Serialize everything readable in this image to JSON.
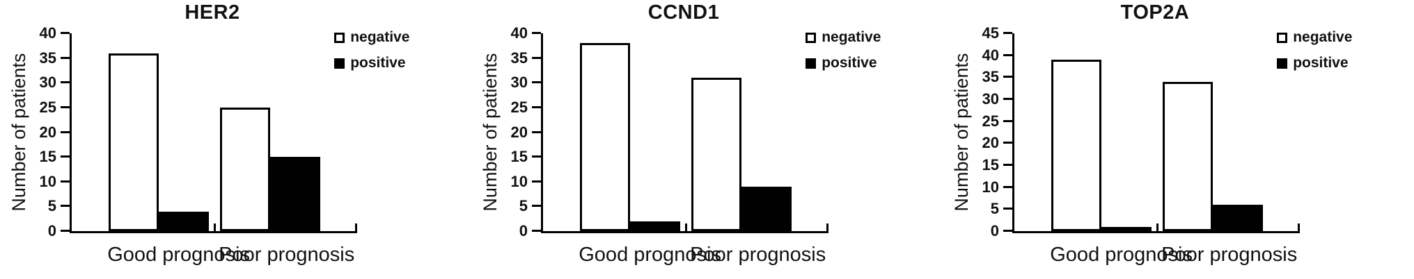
{
  "figure": {
    "background": "#ffffff",
    "ink_color": "#000000"
  },
  "chart_data": [
    {
      "type": "bar",
      "title": "HER2",
      "ylabel": "Number of patients",
      "categories": [
        "Good prognosis",
        "Poor prognosis"
      ],
      "series": [
        {
          "name": "negative",
          "values": [
            36,
            25
          ],
          "fill": "#ffffff"
        },
        {
          "name": "positive",
          "values": [
            4,
            15
          ],
          "fill": "#000000"
        }
      ],
      "ylim": [
        0,
        40
      ],
      "ytick_step": 5,
      "yticks": [
        0,
        5,
        10,
        15,
        20,
        25,
        30,
        35,
        40
      ],
      "legend_position": "top-right",
      "grid": false
    },
    {
      "type": "bar",
      "title": "CCND1",
      "ylabel": "Number of patients",
      "categories": [
        "Good prognosis",
        "Poor prognosis"
      ],
      "series": [
        {
          "name": "negative",
          "values": [
            38,
            31
          ],
          "fill": "#ffffff"
        },
        {
          "name": "positive",
          "values": [
            2,
            9
          ],
          "fill": "#000000"
        }
      ],
      "ylim": [
        0,
        40
      ],
      "ytick_step": 5,
      "yticks": [
        0,
        5,
        10,
        15,
        20,
        25,
        30,
        35,
        40
      ],
      "legend_position": "top-right",
      "grid": false
    },
    {
      "type": "bar",
      "title": "TOP2A",
      "ylabel": "Number of patients",
      "categories": [
        "Good prognosis",
        "Poor prognosis"
      ],
      "series": [
        {
          "name": "negative",
          "values": [
            39,
            34
          ],
          "fill": "#ffffff"
        },
        {
          "name": "positive",
          "values": [
            1,
            6
          ],
          "fill": "#000000"
        }
      ],
      "ylim": [
        0,
        45
      ],
      "ytick_step": 5,
      "yticks": [
        0,
        5,
        10,
        15,
        20,
        25,
        30,
        35,
        40,
        45
      ],
      "legend_position": "top-right",
      "grid": false
    }
  ]
}
